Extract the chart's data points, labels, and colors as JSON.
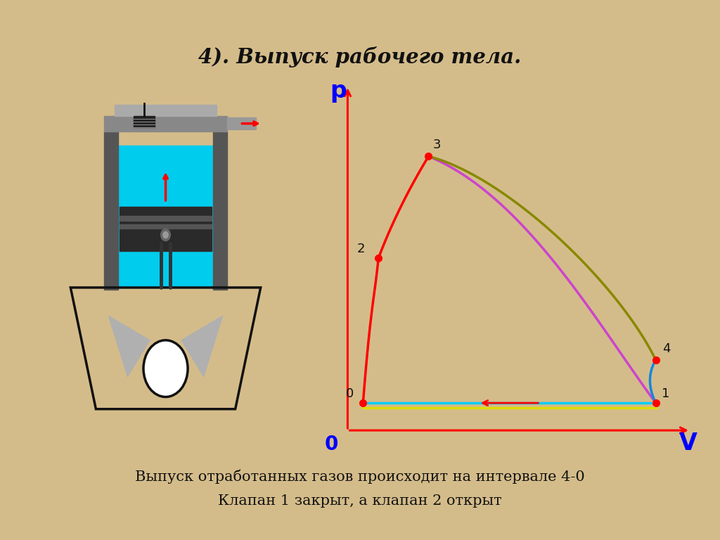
{
  "title": "4). Выпуск рабочего тела.",
  "bottom_text1": "Выпуск отработанных газов происходит на интервале 4-0",
  "bottom_text2": "Клапан 1 закрыт, а клапан 2 открыт",
  "bg_color": "#d4bc8a",
  "panel_bg": "#ffffff"
}
